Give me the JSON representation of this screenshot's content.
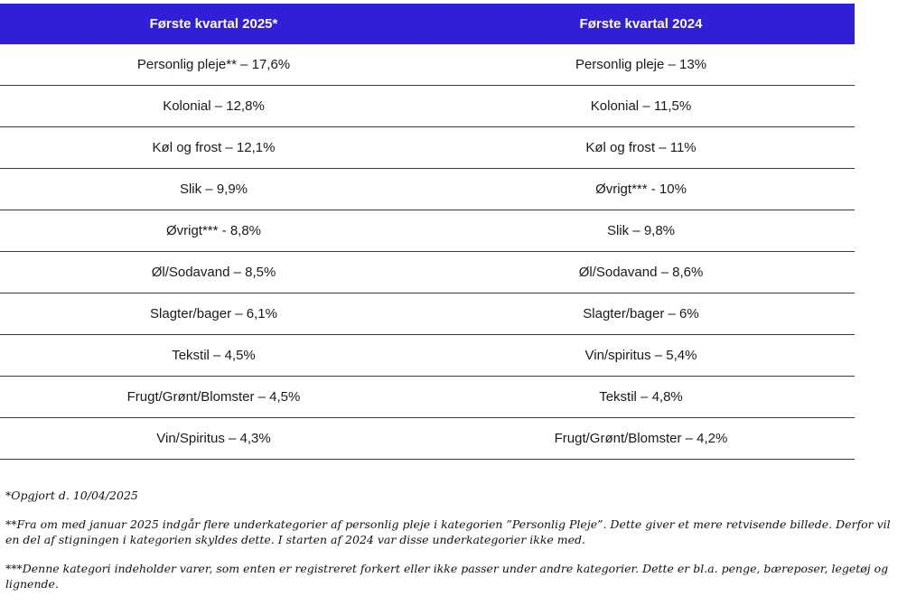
{
  "table": {
    "headers": [
      "Første kvartal 2025*",
      "Første kvartal 2024"
    ],
    "rows": [
      [
        "Personlig pleje** – 17,6%",
        "Personlig pleje – 13%"
      ],
      [
        "Kolonial – 12,8%",
        "Kolonial – 11,5%"
      ],
      [
        "Køl og frost – 12,1%",
        "Køl og frost – 11%"
      ],
      [
        "Slik – 9,9%",
        "Øvrigt*** - 10%"
      ],
      [
        "Øvrigt*** - 8,8%",
        "Slik – 9,8%"
      ],
      [
        "Øl/Sodavand – 8,5%",
        "Øl/Sodavand – 8,6%"
      ],
      [
        "Slagter/bager – 6,1%",
        "Slagter/bager – 6%"
      ],
      [
        "Tekstil – 4,5%",
        "Vin/spiritus – 5,4%"
      ],
      [
        "Frugt/Grønt/Blomster – 4,5%",
        "Tekstil – 4,8%"
      ],
      [
        "Vin/Spiritus – 4,3%",
        "Frugt/Grønt/Blomster – 4,2%"
      ]
    ],
    "header_color": "#2f1fd6"
  },
  "notes": [
    "*Opgjort d. 10/04/2025",
    "**Fra om med januar 2025 indgår flere underkategorier af personlig pleje i kategorien ”Personlig Pleje”. Dette giver et mere retvisende billede. Derfor vil en del af stigningen i kategorien skyldes dette. I starten af 2024 var disse underkategorier ikke med.",
    "***Denne kategori indeholder varer, som enten er registreret forkert eller ikke passer under andre kategorier. Dette er bl.a. penge, bæreposer, legetøj og lignende."
  ]
}
